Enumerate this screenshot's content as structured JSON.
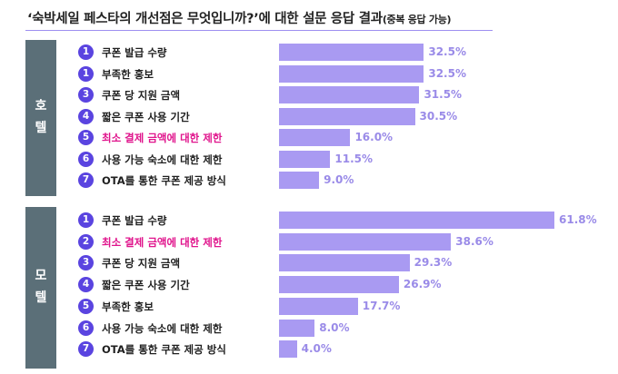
{
  "title": {
    "main": "‘숙박세일 페스타의 개선점은 무엇입니까?’에 대한 설문 응답 결과",
    "sub": "(중복 응답 가능)"
  },
  "colors": {
    "bar": "#a99af2",
    "value_text": "#9a8be8",
    "badge": "#5a44e0",
    "highlight_label": "#e0148c",
    "side_panel": "#5b6f78"
  },
  "chart_data": [
    {
      "type": "bar",
      "orientation": "horizontal",
      "group": "호텔",
      "group_chars": [
        "호",
        "텔"
      ],
      "ranks": [
        "1",
        "1",
        "3",
        "4",
        "5",
        "6",
        "7"
      ],
      "categories": [
        "쿠폰 발급 수량",
        "부족한 홍보",
        "쿠폰 당 지원 금액",
        "짧은 쿠폰 사용 기간",
        "최소 결제 금액에 대한 제한",
        "사용 가능 숙소에 대한 제한",
        "OTA를 통한 쿠폰 제공 방식"
      ],
      "values": [
        32.5,
        32.5,
        31.5,
        30.5,
        16.0,
        11.5,
        9.0
      ],
      "value_labels": [
        "32.5%",
        "32.5%",
        "31.5%",
        "30.5%",
        "16.0%",
        "11.5%",
        "9.0%"
      ],
      "highlighted": [
        false,
        false,
        false,
        false,
        true,
        false,
        false
      ],
      "unit": "%",
      "xlim": [
        0,
        70
      ]
    },
    {
      "type": "bar",
      "orientation": "horizontal",
      "group": "모텔",
      "group_chars": [
        "모",
        "텔"
      ],
      "ranks": [
        "1",
        "2",
        "3",
        "4",
        "5",
        "6",
        "7"
      ],
      "categories": [
        "쿠폰 발급 수량",
        "최소 결제 금액에 대한 제한",
        "쿠폰 당 지원 금액",
        "짧은 쿠폰 사용 기간",
        "부족한 홍보",
        "사용 가능 숙소에 대한 제한",
        "OTA를 통한 쿠폰 제공 방식"
      ],
      "values": [
        61.8,
        38.6,
        29.3,
        26.9,
        17.7,
        8.0,
        4.0
      ],
      "value_labels": [
        "61.8%",
        "38.6%",
        "29.3%",
        "26.9%",
        "17.7%",
        "8.0%",
        "4.0%"
      ],
      "highlighted": [
        false,
        true,
        false,
        false,
        false,
        false,
        false
      ],
      "unit": "%",
      "xlim": [
        0,
        70
      ]
    }
  ]
}
